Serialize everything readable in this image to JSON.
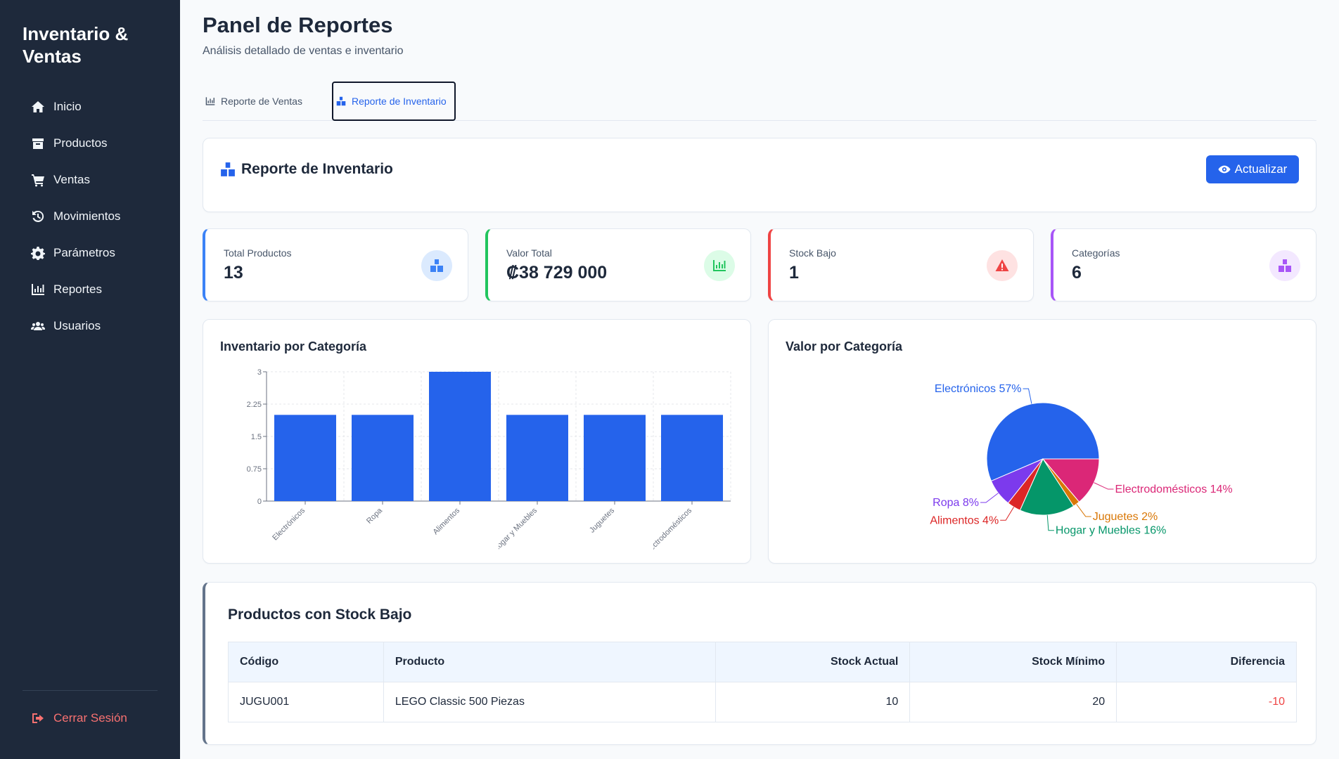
{
  "sidebar": {
    "brand": "Inventario & Ventas",
    "items": [
      {
        "label": "Inicio",
        "icon": "home-icon"
      },
      {
        "label": "Productos",
        "icon": "box-icon"
      },
      {
        "label": "Ventas",
        "icon": "cart-icon"
      },
      {
        "label": "Movimientos",
        "icon": "history-icon"
      },
      {
        "label": "Parámetros",
        "icon": "gear-icon"
      },
      {
        "label": "Reportes",
        "icon": "chart-icon"
      },
      {
        "label": "Usuarios",
        "icon": "users-icon"
      }
    ],
    "logout": "Cerrar Sesión"
  },
  "page": {
    "title": "Panel de Reportes",
    "subtitle": "Análisis detallado de ventas e inventario"
  },
  "tabs": [
    {
      "label": "Reporte de Ventas",
      "active": false
    },
    {
      "label": "Reporte de Inventario",
      "active": true
    }
  ],
  "header": {
    "title": "Reporte de Inventario",
    "refresh_label": "Actualizar"
  },
  "stats": [
    {
      "label": "Total Productos",
      "value": "13",
      "color": "#3b82f6",
      "bg": "#dbeafe",
      "icon": "boxes-icon"
    },
    {
      "label": "Valor Total",
      "value": "₡38 729 000",
      "color": "#22c55e",
      "bg": "#dcfce7",
      "icon": "chart-icon"
    },
    {
      "label": "Stock Bajo",
      "value": "1",
      "color": "#ef4444",
      "bg": "#fee2e2",
      "icon": "warning-icon"
    },
    {
      "label": "Categorías",
      "value": "6",
      "color": "#a855f7",
      "bg": "#f3e8ff",
      "icon": "boxes-icon"
    }
  ],
  "bar_title": "Inventario por Categoría",
  "pie_title": "Valor por Categoría",
  "chart_data": [
    {
      "type": "bar",
      "title": "Inventario por Categoría",
      "categories": [
        "Electrónicos",
        "Ropa",
        "Alimentos",
        "Hogar y Muebles",
        "Juguetes",
        "Electrodomésticos"
      ],
      "values": [
        2,
        2,
        3,
        2,
        2,
        2
      ],
      "yticks": [
        "0",
        "0.75",
        "1.5",
        "2.25",
        "3"
      ],
      "ylim": [
        0,
        3
      ],
      "color": "#2563eb",
      "grid": true
    },
    {
      "type": "pie",
      "title": "Valor por Categoría",
      "slices": [
        {
          "label": "Electrónicos 57%",
          "value": 57,
          "color": "#2563eb"
        },
        {
          "label": "Electrodomésticos 14%",
          "value": 14,
          "color": "#db2777"
        },
        {
          "label": "Juguetes 2%",
          "value": 2,
          "color": "#d97706"
        },
        {
          "label": "Hogar y Muebles 16%",
          "value": 16,
          "color": "#059669"
        },
        {
          "label": "Alimentos 4%",
          "value": 4,
          "color": "#dc2626"
        },
        {
          "label": "Ropa 8%",
          "value": 8,
          "color": "#7c3aed"
        }
      ]
    }
  ],
  "low_stock": {
    "title": "Productos con Stock Bajo",
    "columns": [
      "Código",
      "Producto",
      "Stock Actual",
      "Stock Mínimo",
      "Diferencia"
    ],
    "rows": [
      {
        "codigo": "JUGU001",
        "producto": "LEGO Classic 500 Piezas",
        "actual": "10",
        "minimo": "20",
        "diferencia": "-10"
      }
    ]
  }
}
